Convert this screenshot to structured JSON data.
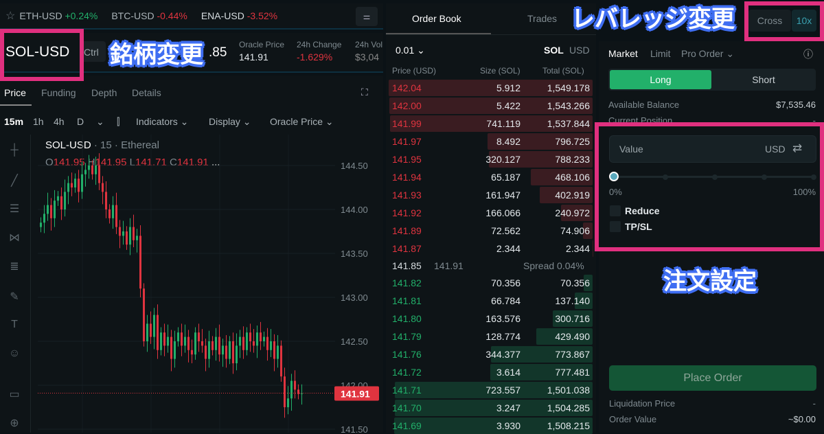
{
  "ticker": {
    "items": [
      {
        "pair": "ETH-USD",
        "change": "+0.24%",
        "dir": "up"
      },
      {
        "pair": "BTC-USD",
        "change": "-0.44%",
        "dir": "down"
      },
      {
        "pair": "ENA-USD",
        "change": "-3.52%",
        "dir": "down"
      }
    ]
  },
  "market": {
    "symbol": "SOL-USD",
    "ctrl_label": "Ctrl",
    "last_price_fragment": ".85",
    "oracle_label": "Oracle Price",
    "oracle_value": "141.91",
    "change_label": "24h Change",
    "change_value": "-1.629%",
    "vol_label": "24h Vol",
    "vol_value": "$3,04"
  },
  "chart_tabs": [
    "Price",
    "Funding",
    "Depth",
    "Details"
  ],
  "toolbar": {
    "intervals": [
      "15m",
      "1h",
      "4h",
      "D"
    ],
    "indicators": "Indicators",
    "display": "Display",
    "oracle": "Oracle Price"
  },
  "legend": {
    "symbol": "SOL-USD",
    "interval": "15",
    "source": "Ethereal",
    "o": "141.95",
    "h": "141.95",
    "l": "141.71",
    "c": "141.91",
    "more": "..."
  },
  "price_axis": [
    "144.50",
    "144.00",
    "143.50",
    "143.00",
    "142.50",
    "142.00",
    "141.50"
  ],
  "current_price_tag": "141.91",
  "chart_data": {
    "type": "candlestick",
    "symbol": "SOL-USD",
    "interval": "15m",
    "ylim": [
      141.45,
      144.75
    ],
    "closes": [
      143.85,
      143.95,
      144.05,
      143.9,
      144.1,
      144.15,
      144.0,
      144.2,
      144.3,
      144.25,
      144.35,
      144.2,
      144.4,
      144.45,
      144.5,
      144.4,
      144.5,
      144.3,
      144.2,
      144.0,
      143.9,
      144.05,
      143.8,
      143.7,
      143.75,
      143.6,
      143.8,
      143.65,
      143.7,
      143.1,
      142.5,
      142.7,
      142.55,
      142.8,
      142.4,
      142.6,
      142.45,
      142.55,
      142.3,
      142.5,
      142.6,
      142.45,
      142.55,
      142.4,
      142.35,
      142.6,
      142.5,
      142.45,
      142.3,
      142.5,
      142.4,
      142.55,
      142.35,
      142.45,
      142.3,
      142.5,
      142.25,
      142.45,
      142.55,
      142.4,
      142.6,
      142.5,
      142.45,
      142.6,
      142.5,
      142.55,
      142.4,
      142.5,
      142.3,
      142.45,
      142.1,
      141.75,
      141.85,
      142.05,
      141.95,
      141.9,
      141.91
    ]
  },
  "colors": {
    "up": "#22b06a",
    "down": "#e0343f",
    "accent": "#22b06a",
    "annotation_box": "#e0307f",
    "annotation_label": "#3f6ef2"
  },
  "book": {
    "tabs": [
      "Order Book",
      "Trades"
    ],
    "tick": "0.01",
    "unit_sol": "SOL",
    "unit_usd": "USD",
    "headers": [
      "Price (USD)",
      "Size (SOL)",
      "Total (SOL)"
    ],
    "asks": [
      [
        "142.04",
        "5.912",
        "1,549.178"
      ],
      [
        "142.00",
        "5.422",
        "1,543.266"
      ],
      [
        "141.99",
        "741.119",
        "1,537.844"
      ],
      [
        "141.97",
        "8.492",
        "796.725"
      ],
      [
        "141.95",
        "320.127",
        "788.233"
      ],
      [
        "141.94",
        "65.187",
        "468.106"
      ],
      [
        "141.93",
        "161.947",
        "402.919"
      ],
      [
        "141.92",
        "166.066",
        "240.972"
      ],
      [
        "141.89",
        "72.562",
        "74.906"
      ],
      [
        "141.87",
        "2.344",
        "2.344"
      ]
    ],
    "spread": {
      "price": "141.85",
      "oracle": "141.91",
      "label": "Spread 0.04%"
    },
    "bids": [
      [
        "141.82",
        "70.356",
        "70.356"
      ],
      [
        "141.81",
        "66.784",
        "137.140"
      ],
      [
        "141.80",
        "163.576",
        "300.716"
      ],
      [
        "141.79",
        "128.774",
        "429.490"
      ],
      [
        "141.76",
        "344.377",
        "773.867"
      ],
      [
        "141.72",
        "3.614",
        "777.481"
      ],
      [
        "141.71",
        "723.557",
        "1,501.038"
      ],
      [
        "141.70",
        "3.247",
        "1,504.285"
      ],
      [
        "141.69",
        "3.930",
        "1,508.215"
      ]
    ]
  },
  "leverage": {
    "margin": "Cross",
    "value": "10x"
  },
  "order": {
    "types": [
      "Market",
      "Limit",
      "Pro Order"
    ],
    "long": "Long",
    "short": "Short",
    "balance_label": "Available Balance",
    "balance_value": "$7,535.46",
    "position_label": "Current Position",
    "position_value": "-",
    "value_placeholder": "Value",
    "currency": "USD",
    "slider_value": 0,
    "slider_min": "0%",
    "slider_max": "100%",
    "reduce": "Reduce",
    "tpsl": "TP/SL",
    "place": "Place Order",
    "liq_label": "Liquidation Price",
    "liq_value": "-",
    "ov_label": "Order Value",
    "ov_value": "~$0.00"
  },
  "annotations": {
    "symbol": "銘柄変更",
    "leverage": "レバレッジ変更",
    "order": "注文設定"
  }
}
